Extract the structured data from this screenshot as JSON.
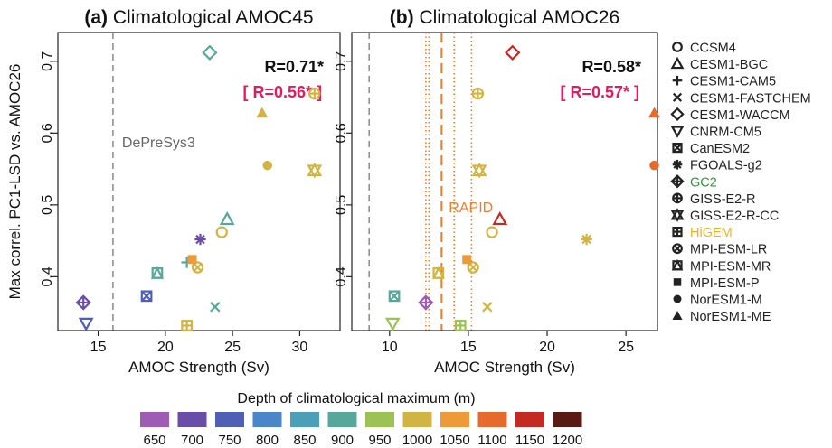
{
  "chart_data": [
    {
      "type": "scatter",
      "panel": "a",
      "title_bold": "(a)",
      "title": "Climatological AMOC45",
      "xlabel": "AMOC Strength (Sv)",
      "ylabel": "Max correl. PC1-LSD vs. AMOC26",
      "xlim": [
        12,
        33
      ],
      "ylim": [
        0.325,
        0.74
      ],
      "xticks": [
        "15",
        "20",
        "25",
        "30"
      ],
      "xtick_values": [
        15,
        20,
        25,
        30
      ],
      "yticks": [
        "0.4",
        "0.5",
        "0.6",
        "0.7"
      ],
      "ytick_values": [
        0.4,
        0.5,
        0.6,
        0.7
      ],
      "obs_line": {
        "label": "DePreSys3",
        "x": 16.1,
        "color": "#777777"
      },
      "r_text": "R=0.71*",
      "r_text_alt": "[ R=0.56* ]",
      "points": [
        {
          "model": "CCSM4",
          "x": 24.2,
          "y": 0.462,
          "depth": 1000
        },
        {
          "model": "CESM1-BGC",
          "x": 24.6,
          "y": 0.48,
          "depth": 900
        },
        {
          "model": "CESM1-CAM5",
          "x": 21.6,
          "y": 0.42,
          "depth": 900
        },
        {
          "model": "CESM1-FASTCHEM",
          "x": 23.7,
          "y": 0.358,
          "depth": 900
        },
        {
          "model": "CESM1-WACCM",
          "x": 23.3,
          "y": 0.712,
          "depth": 900
        },
        {
          "model": "CNRM-CM5",
          "x": 14.1,
          "y": 0.335,
          "depth": 750
        },
        {
          "model": "CanESM2",
          "x": 18.6,
          "y": 0.373,
          "depth": 750
        },
        {
          "model": "FGOALS-g2",
          "x": 22.6,
          "y": 0.452,
          "depth": 700
        },
        {
          "model": "GC2",
          "x": 13.9,
          "y": 0.364,
          "depth": 700
        },
        {
          "model": "GISS-E2-R",
          "x": 31.1,
          "y": 0.655,
          "depth": 1000
        },
        {
          "model": "GISS-E2-R-CC",
          "x": 31.1,
          "y": 0.548,
          "depth": 1000
        },
        {
          "model": "HiGEM",
          "x": 21.6,
          "y": 0.332,
          "depth": 1000
        },
        {
          "model": "MPI-ESM-LR",
          "x": 22.4,
          "y": 0.413,
          "depth": 1000
        },
        {
          "model": "MPI-ESM-MR",
          "x": 19.4,
          "y": 0.405,
          "depth": 900
        },
        {
          "model": "MPI-ESM-P",
          "x": 22.0,
          "y": 0.424,
          "depth": 1050
        },
        {
          "model": "NorESM1-M",
          "x": 27.6,
          "y": 0.555,
          "depth": 1000
        },
        {
          "model": "NorESM1-ME",
          "x": 27.2,
          "y": 0.628,
          "depth": 1000
        }
      ]
    },
    {
      "type": "scatter",
      "panel": "b",
      "title_bold": "(b)",
      "title": "Climatological AMOC26",
      "xlabel": "AMOC Strength (Sv)",
      "ylabel": "",
      "xlim": [
        7.6,
        27
      ],
      "ylim": [
        0.325,
        0.74
      ],
      "xticks": [
        "10",
        "15",
        "20",
        "25"
      ],
      "xtick_values": [
        10,
        15,
        20,
        25
      ],
      "yticks": [
        "0.4",
        "0.5",
        "0.6",
        "0.7"
      ],
      "ytick_values": [
        0.4,
        0.5,
        0.6,
        0.7
      ],
      "obs_line": {
        "label": "",
        "x": 8.7,
        "color": "#777777"
      },
      "rapid": {
        "label": "RAPID",
        "mean": 13.3,
        "inner": [
          12.5,
          14.1
        ],
        "outer": [
          12.3,
          15.2
        ],
        "color": "#f07d2a"
      },
      "r_text": "R=0.58*",
      "r_text_alt": "[ R=0.57* ]",
      "points": [
        {
          "model": "CCSM4",
          "x": 16.5,
          "y": 0.462,
          "depth": 1000
        },
        {
          "model": "CESM1-BGC",
          "x": 17.0,
          "y": 0.48,
          "depth": 1150
        },
        {
          "model": "CESM1-CAM5",
          "x": 15.0,
          "y": 0.42,
          "depth": 1000
        },
        {
          "model": "CESM1-FASTCHEM",
          "x": 16.2,
          "y": 0.358,
          "depth": 1000
        },
        {
          "model": "CESM1-WACCM",
          "x": 17.8,
          "y": 0.712,
          "depth": 1150
        },
        {
          "model": "CNRM-CM5",
          "x": 10.2,
          "y": 0.335,
          "depth": 950
        },
        {
          "model": "CanESM2",
          "x": 10.3,
          "y": 0.373,
          "depth": 900
        },
        {
          "model": "FGOALS-g2",
          "x": 22.5,
          "y": 0.452,
          "depth": 1000
        },
        {
          "model": "GC2",
          "x": 12.3,
          "y": 0.364,
          "depth": 650
        },
        {
          "model": "GISS-E2-R",
          "x": 15.6,
          "y": 0.655,
          "depth": 1000
        },
        {
          "model": "GISS-E2-R-CC",
          "x": 15.7,
          "y": 0.548,
          "depth": 1000
        },
        {
          "model": "HiGEM",
          "x": 14.5,
          "y": 0.332,
          "depth": 950
        },
        {
          "model": "MPI-ESM-LR",
          "x": 15.3,
          "y": 0.413,
          "depth": 1000
        },
        {
          "model": "MPI-ESM-MR",
          "x": 13.1,
          "y": 0.405,
          "depth": 1000
        },
        {
          "model": "MPI-ESM-P",
          "x": 14.9,
          "y": 0.424,
          "depth": 1050
        },
        {
          "model": "NorESM1-M",
          "x": 26.8,
          "y": 0.555,
          "depth": 1100
        },
        {
          "model": "NorESM1-ME",
          "x": 26.8,
          "y": 0.628,
          "depth": 1100
        }
      ]
    }
  ],
  "legend": {
    "placement": "right",
    "entries": [
      {
        "label": "CCSM4",
        "marker": "circle-open",
        "color": "#222222"
      },
      {
        "label": "CESM1-BGC",
        "marker": "triangle-open",
        "color": "#222222"
      },
      {
        "label": "CESM1-CAM5",
        "marker": "plus",
        "color": "#222222"
      },
      {
        "label": "CESM1-FASTCHEM",
        "marker": "cross",
        "color": "#222222"
      },
      {
        "label": "CESM1-WACCM",
        "marker": "diamond-open",
        "color": "#222222"
      },
      {
        "label": "CNRM-CM5",
        "marker": "triangle-down-open",
        "color": "#222222"
      },
      {
        "label": "CanESM2",
        "marker": "square-x",
        "color": "#222222"
      },
      {
        "label": "FGOALS-g2",
        "marker": "asterisk",
        "color": "#222222"
      },
      {
        "label": "GC2",
        "marker": "diamond-plus",
        "color": "#2e9a3a"
      },
      {
        "label": "GISS-E2-R",
        "marker": "circle-plus",
        "color": "#222222"
      },
      {
        "label": "GISS-E2-R-CC",
        "marker": "star-david",
        "color": "#222222"
      },
      {
        "label": "HiGEM",
        "marker": "square-plus",
        "color": "#f2b01e"
      },
      {
        "label": "MPI-ESM-LR",
        "marker": "circle-x",
        "color": "#222222"
      },
      {
        "label": "MPI-ESM-MR",
        "marker": "square-triangle",
        "color": "#222222"
      },
      {
        "label": "MPI-ESM-P",
        "marker": "square-filled",
        "color": "#222222"
      },
      {
        "label": "NorESM1-M",
        "marker": "circle-filled",
        "color": "#222222"
      },
      {
        "label": "NorESM1-ME",
        "marker": "triangle-filled",
        "color": "#222222"
      }
    ]
  },
  "colorbar": {
    "title": "Depth of climatological maximum (m)",
    "levels": [
      {
        "label": "650",
        "value": 650,
        "color": "#a05bb4"
      },
      {
        "label": "700",
        "value": 700,
        "color": "#6a4da8"
      },
      {
        "label": "750",
        "value": 750,
        "color": "#4f5fb5"
      },
      {
        "label": "800",
        "value": 800,
        "color": "#4a86c8"
      },
      {
        "label": "850",
        "value": 850,
        "color": "#4b9fb8"
      },
      {
        "label": "900",
        "value": 900,
        "color": "#56a89a"
      },
      {
        "label": "950",
        "value": 950,
        "color": "#9cc253"
      },
      {
        "label": "1000",
        "value": 1000,
        "color": "#d2b444"
      },
      {
        "label": "1050",
        "value": 1050,
        "color": "#ef9a3a"
      },
      {
        "label": "1100",
        "value": 1100,
        "color": "#e56a2c"
      },
      {
        "label": "1150",
        "value": 1150,
        "color": "#c42a22"
      },
      {
        "label": "1200",
        "value": 1200,
        "color": "#5a1a14"
      }
    ]
  },
  "colors": {
    "r_text": "#111111",
    "r_text_alt": "#e8185f",
    "axis": "#222222"
  }
}
